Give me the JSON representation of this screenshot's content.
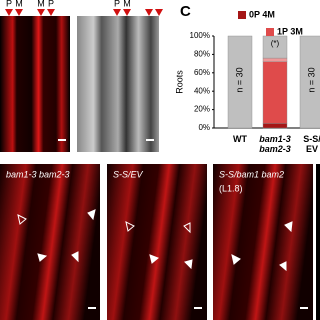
{
  "panel_label": "C",
  "top_images": {
    "markers": [
      "P",
      "M",
      "M",
      "P"
    ]
  },
  "bottom_images": [
    {
      "title": "bam1-3 bam2-3"
    },
    {
      "title": "S-S/EV"
    },
    {
      "title": "S-S/bam1 bam2",
      "subtitle": "(L1.8)"
    }
  ],
  "chart_data": {
    "type": "stacked-bar",
    "y_label": "Roots",
    "categories": [
      "WT",
      "bam1-3 bam2-3",
      "S-S/ EV"
    ],
    "series": [
      {
        "name": "0P 4M",
        "color": "#a51616",
        "values": [
          0,
          5,
          0
        ]
      },
      {
        "name": "1P 3M",
        "color": "#df4b4b",
        "values": [
          0,
          67,
          0
        ]
      },
      {
        "color": "#ee9a9a",
        "values": [
          0,
          4,
          0
        ]
      },
      {
        "color": "#bfbfbf",
        "values": [
          100,
          24,
          100
        ]
      }
    ],
    "annotations": [
      "n = 30",
      "(*)",
      "n = 30"
    ],
    "ylim": [
      0,
      100
    ],
    "yticks": [
      {
        "value": 0,
        "label": "0%"
      },
      {
        "value": 20,
        "label": "20%"
      },
      {
        "value": 40,
        "label": "40%"
      },
      {
        "value": 60,
        "label": "60%"
      },
      {
        "value": 80,
        "label": "80%"
      },
      {
        "value": 100,
        "label": "100%"
      }
    ]
  }
}
